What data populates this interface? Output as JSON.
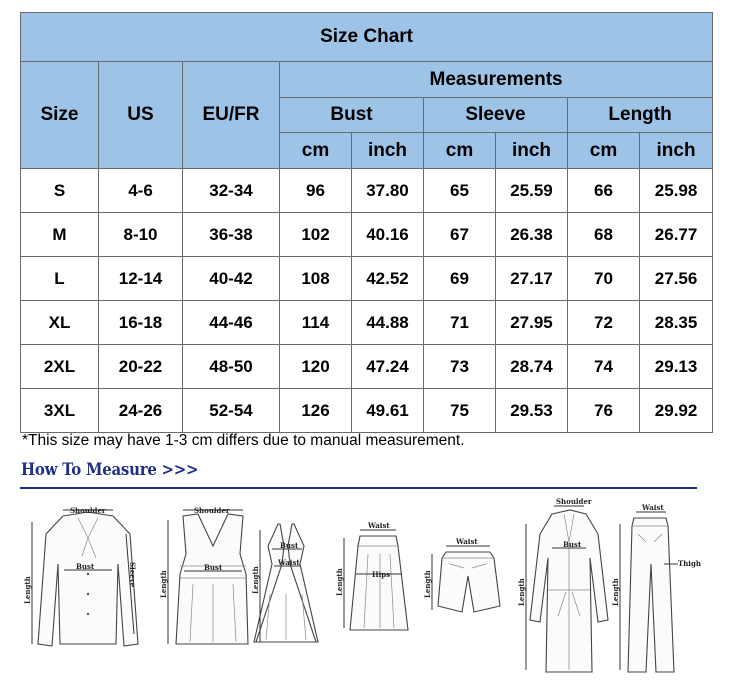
{
  "table": {
    "title": "Size Chart",
    "size_header": "Size",
    "us_header": "US",
    "eu_header": "EU/FR",
    "measurements_header": "Measurements",
    "groups": [
      "Bust",
      "Sleeve",
      "Length"
    ],
    "units": [
      "cm",
      "inch",
      "cm",
      "inch",
      "cm",
      "inch"
    ],
    "rows": [
      {
        "size": "S",
        "us": "4-6",
        "eu": "32-34",
        "bust_cm": "96",
        "bust_in": "37.80",
        "sleeve_cm": "65",
        "sleeve_in": "25.59",
        "length_cm": "66",
        "length_in": "25.98"
      },
      {
        "size": "M",
        "us": "8-10",
        "eu": "36-38",
        "bust_cm": "102",
        "bust_in": "40.16",
        "sleeve_cm": "67",
        "sleeve_in": "26.38",
        "length_cm": "68",
        "length_in": "26.77"
      },
      {
        "size": "L",
        "us": "12-14",
        "eu": "40-42",
        "bust_cm": "108",
        "bust_in": "42.52",
        "sleeve_cm": "69",
        "sleeve_in": "27.17",
        "length_cm": "70",
        "length_in": "27.56"
      },
      {
        "size": "XL",
        "us": "16-18",
        "eu": "44-46",
        "bust_cm": "114",
        "bust_in": "44.88",
        "sleeve_cm": "71",
        "sleeve_in": "27.95",
        "length_cm": "72",
        "length_in": "28.35"
      },
      {
        "size": "2XL",
        "us": "20-22",
        "eu": "48-50",
        "bust_cm": "120",
        "bust_in": "47.24",
        "sleeve_cm": "73",
        "sleeve_in": "28.74",
        "length_cm": "74",
        "length_in": "29.13"
      },
      {
        "size": "3XL",
        "us": "24-26",
        "eu": "52-54",
        "bust_cm": "126",
        "bust_in": "49.61",
        "sleeve_cm": "75",
        "sleeve_in": "29.53",
        "length_cm": "76",
        "length_in": "29.92"
      }
    ],
    "header_color": "#9dc3e6"
  },
  "note": "*This size may have 1-3 cm differs due to manual measurement.",
  "how_to_measure": {
    "title": "How To Measure >>>",
    "color": "#1f2f87",
    "labels": {
      "shoulder": "Shoulder",
      "bust": "Bust",
      "sleeve": "Sleeve",
      "length": "Length",
      "waist": "Waist",
      "hips": "Hips",
      "thigh": "Thigh"
    }
  }
}
